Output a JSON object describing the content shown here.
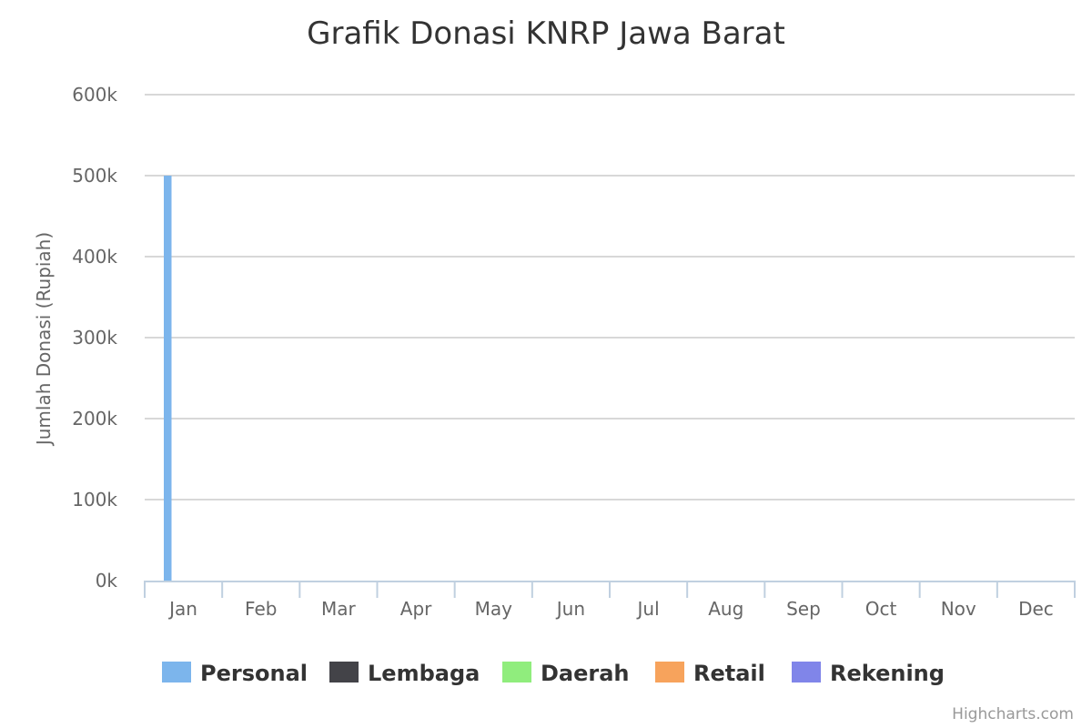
{
  "chart_data": {
    "type": "bar",
    "title": "Grafik Donasi KNRP Jawa Barat",
    "xlabel": "",
    "ylabel": "Jumlah Donasi (Rupiah)",
    "categories": [
      "Jan",
      "Feb",
      "Mar",
      "Apr",
      "May",
      "Jun",
      "Jul",
      "Aug",
      "Sep",
      "Oct",
      "Nov",
      "Dec"
    ],
    "ylim": [
      0,
      600000
    ],
    "yticks": [
      0,
      100000,
      200000,
      300000,
      400000,
      500000,
      600000
    ],
    "ytick_labels": [
      "0k",
      "100k",
      "200k",
      "300k",
      "400k",
      "500k",
      "600k"
    ],
    "grid": true,
    "legend_position": "bottom",
    "series": [
      {
        "name": "Personal",
        "color": "#7cb5ec",
        "values": [
          500000,
          0,
          0,
          0,
          0,
          0,
          0,
          0,
          0,
          0,
          0,
          0
        ]
      },
      {
        "name": "Lembaga",
        "color": "#434348",
        "values": [
          0,
          0,
          0,
          0,
          0,
          0,
          0,
          0,
          0,
          0,
          0,
          0
        ]
      },
      {
        "name": "Daerah",
        "color": "#90ed7d",
        "values": [
          0,
          0,
          0,
          0,
          0,
          0,
          0,
          0,
          0,
          0,
          0,
          0
        ]
      },
      {
        "name": "Retail",
        "color": "#f7a35c",
        "values": [
          0,
          0,
          0,
          0,
          0,
          0,
          0,
          0,
          0,
          0,
          0,
          0
        ]
      },
      {
        "name": "Rekening",
        "color": "#8085e9",
        "values": [
          0,
          0,
          0,
          0,
          0,
          0,
          0,
          0,
          0,
          0,
          0,
          0
        ]
      }
    ],
    "credits": "Highcharts.com"
  }
}
